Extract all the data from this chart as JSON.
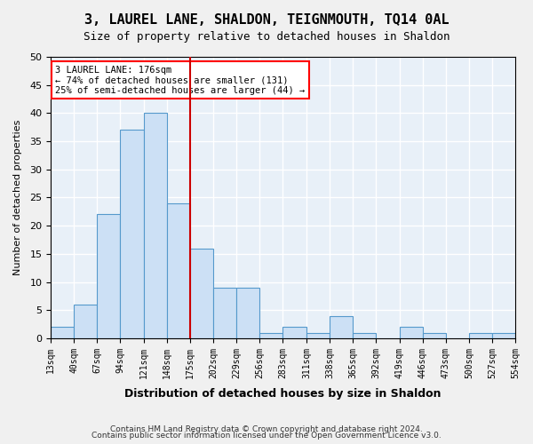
{
  "title1": "3, LAUREL LANE, SHALDON, TEIGNMOUTH, TQ14 0AL",
  "title2": "Size of property relative to detached houses in Shaldon",
  "xlabel": "Distribution of detached houses by size in Shaldon",
  "ylabel": "Number of detached properties",
  "footnote1": "Contains HM Land Registry data © Crown copyright and database right 2024.",
  "footnote2": "Contains public sector information licensed under the Open Government Licence v3.0.",
  "annotation_line1": "3 LAUREL LANE: 176sqm",
  "annotation_line2": "← 74% of detached houses are smaller (131)",
  "annotation_line3": "25% of semi-detached houses are larger (44) →",
  "property_line_x": 175,
  "bar_edges": [
    13,
    40,
    67,
    94,
    121,
    148,
    175,
    202,
    229,
    256,
    283,
    311,
    338,
    365,
    392,
    419,
    446,
    473,
    500,
    527,
    554
  ],
  "bar_heights": [
    2,
    6,
    22,
    37,
    40,
    24,
    16,
    9,
    9,
    1,
    2,
    1,
    4,
    1,
    0,
    2,
    1,
    0,
    1,
    1
  ],
  "bar_color": "#cce0f5",
  "bar_edge_color": "#5599cc",
  "property_line_color": "#cc0000",
  "bg_color": "#e8f0f8",
  "grid_color": "#ffffff",
  "tick_labels": [
    "13sqm",
    "40sqm",
    "67sqm",
    "94sqm",
    "121sqm",
    "148sqm",
    "175sqm",
    "202sqm",
    "229sqm",
    "256sqm",
    "283sqm",
    "311sqm",
    "338sqm",
    "365sqm",
    "392sqm",
    "419sqm",
    "446sqm",
    "473sqm",
    "500sqm",
    "527sqm",
    "554sqm"
  ],
  "ylim": [
    0,
    50
  ],
  "yticks": [
    0,
    5,
    10,
    15,
    20,
    25,
    30,
    35,
    40,
    45,
    50
  ]
}
